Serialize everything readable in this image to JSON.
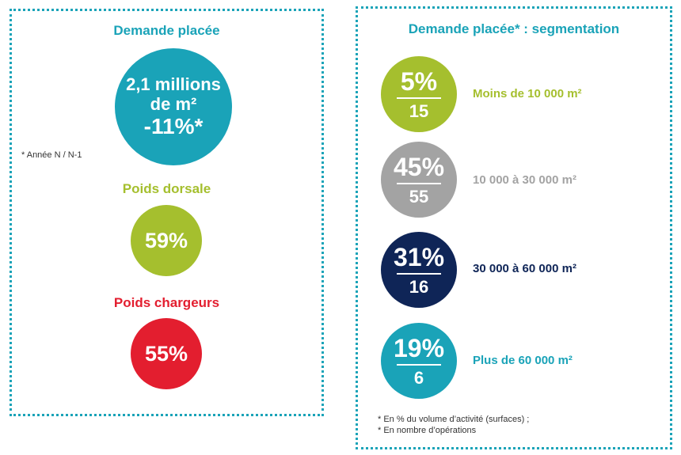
{
  "colors": {
    "teal": "#1aa3b8",
    "green": "#a5bf2e",
    "red": "#e31e2f",
    "grey": "#a3a3a3",
    "navy": "#0f2557"
  },
  "left": {
    "demand": {
      "title": "Demande placée",
      "line1": "2,1 millions",
      "line2": "de m²",
      "line3": "-11%*"
    },
    "footnote": "* Année N / N-1",
    "dorsale": {
      "title": "Poids dorsale",
      "value": "59%"
    },
    "chargeurs": {
      "title": "Poids chargeurs",
      "value": "55%"
    }
  },
  "right": {
    "title": "Demande placée* : segmentation",
    "rows": [
      {
        "percent": "5%",
        "operations": "15",
        "label": "Moins de 10 000 m²"
      },
      {
        "percent": "45%",
        "operations": "55",
        "label": "10 000 à 30 000 m²"
      },
      {
        "percent": "31%",
        "operations": "16",
        "label": "30 000 à 60 000 m²"
      },
      {
        "percent": "19%",
        "operations": "6",
        "label": "Plus de 60 000 m²"
      }
    ],
    "notes": [
      "* En % du volume d’activité (surfaces) ;",
      "* En nombre d’opérations"
    ]
  }
}
